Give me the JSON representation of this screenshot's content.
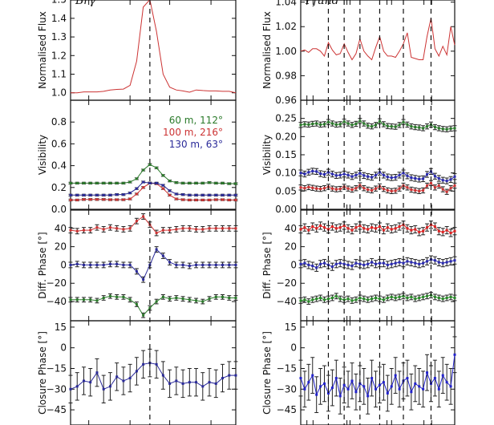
{
  "chart_data": [
    {
      "column": "left",
      "title": "Brγ",
      "type": "line",
      "ylabel": "Normalised Flux",
      "ylim": [
        0.96,
        1.52
      ],
      "xlim": [
        0,
        25
      ],
      "yticks": [
        "1.0",
        "1.1",
        "1.2",
        "1.3",
        "1.4",
        "1.5"
      ],
      "series": [
        {
          "color": "#cc3333",
          "values": [
            1.0,
            1.0,
            1.005,
            1.005,
            1.005,
            1.008,
            1.015,
            1.018,
            1.02,
            1.04,
            1.17,
            1.46,
            1.5,
            1.33,
            1.1,
            1.03,
            1.015,
            1.01,
            1.003,
            1.015,
            1.012,
            1.01,
            1.01,
            1.008,
            1.008,
            1.0
          ]
        }
      ]
    },
    {
      "column": "left",
      "type": "line",
      "ylabel": "Visibility",
      "ylim": [
        0,
        1.0
      ],
      "xlim": [
        0,
        25
      ],
      "yticks": [
        "0.0",
        "0.2",
        "0.4",
        "0.6",
        "0.8"
      ],
      "legend": "top-right",
      "series": [
        {
          "name": "60 m, 112°",
          "color": "#2a7a2a",
          "err": 0.008,
          "values": [
            0.24,
            0.24,
            0.24,
            0.24,
            0.24,
            0.24,
            0.24,
            0.24,
            0.24,
            0.25,
            0.28,
            0.36,
            0.41,
            0.38,
            0.31,
            0.26,
            0.245,
            0.24,
            0.24,
            0.24,
            0.24,
            0.245,
            0.24,
            0.24,
            0.235,
            0.235
          ]
        },
        {
          "name": "100 m, 216°",
          "color": "#cc3333",
          "err": 0.008,
          "values": [
            0.085,
            0.085,
            0.09,
            0.09,
            0.09,
            0.09,
            0.088,
            0.088,
            0.088,
            0.095,
            0.14,
            0.2,
            0.24,
            0.235,
            0.19,
            0.13,
            0.095,
            0.088,
            0.085,
            0.085,
            0.085,
            0.085,
            0.088,
            0.088,
            0.085,
            0.085
          ]
        },
        {
          "name": "130 m, 63°",
          "color": "#2a2a99",
          "err": 0.008,
          "values": [
            0.13,
            0.13,
            0.13,
            0.13,
            0.13,
            0.13,
            0.13,
            0.135,
            0.135,
            0.15,
            0.19,
            0.25,
            0.24,
            0.24,
            0.22,
            0.17,
            0.14,
            0.135,
            0.13,
            0.13,
            0.13,
            0.13,
            0.13,
            0.13,
            0.13,
            0.13
          ]
        }
      ]
    },
    {
      "column": "left",
      "type": "line",
      "ylabel": "Diff. Phase [°]",
      "ylim": [
        -61,
        60
      ],
      "xlim": [
        0,
        25
      ],
      "yticks": [
        "−40",
        "−20",
        "0",
        "20",
        "40"
      ],
      "series": [
        {
          "color": "#cc3333",
          "err": 3,
          "values": [
            38,
            37,
            38,
            38,
            41,
            39,
            41,
            40,
            39,
            40,
            48,
            53,
            44,
            35,
            38,
            38,
            39,
            40,
            40,
            39,
            39,
            40,
            40,
            40,
            40,
            40
          ]
        },
        {
          "color": "#2a2a99",
          "err": 3,
          "values": [
            0,
            1,
            0,
            0,
            0,
            0,
            1,
            1,
            0,
            0,
            -7,
            -16,
            0,
            17,
            10,
            3,
            0,
            0,
            -1,
            0,
            0,
            0,
            0,
            0,
            0,
            0
          ]
        },
        {
          "color": "#2a7a2a",
          "err": 2.5,
          "values": [
            -38,
            -38,
            -38,
            -38,
            -39,
            -36,
            -34,
            -35,
            -35,
            -38,
            -43,
            -55,
            -47,
            -40,
            -35,
            -37,
            -36,
            -37,
            -38,
            -39,
            -40,
            -37,
            -35,
            -35,
            -36,
            -36
          ]
        }
      ]
    },
    {
      "column": "left",
      "type": "line",
      "ylabel": "Closure Phase [°]",
      "ylim": [
        -56,
        19.6
      ],
      "xlim": [
        0,
        25
      ],
      "yticks": [
        "−45",
        "−30",
        "−15",
        "0",
        "15"
      ],
      "series": [
        {
          "color": "#2a2a99",
          "err": 10,
          "values": [
            -30,
            -28,
            -24,
            -25,
            -18,
            -30,
            -28,
            -21,
            -24,
            -22,
            -17,
            -12,
            -11,
            -12,
            -20,
            -26,
            -24,
            -26,
            -25,
            -25,
            -28,
            -25,
            -26,
            -22,
            -20,
            -20
          ]
        }
      ]
    },
    {
      "column": "right",
      "title": "Pfund",
      "type": "line",
      "ylabel": "Normalised Flux",
      "ylim": [
        0.96,
        1.045
      ],
      "xlim": [
        0,
        39
      ],
      "yticks": [
        "0.96",
        "0.98",
        "1.00",
        "1.02",
        "1.04"
      ],
      "series": [
        {
          "color": "#cc3333",
          "values": [
            1.0,
            1.001,
            0.999,
            1.002,
            1.002,
            1.0,
            0.996,
            1.007,
            1.001,
            0.997,
            0.998,
            1.006,
            0.999,
            0.993,
            0.998,
            1.01,
            1.0,
            0.996,
            0.993,
            1.003,
            1.012,
            1.0,
            0.996,
            0.996,
            0.995,
            1.0,
            1.006,
            1.015,
            0.995,
            0.994,
            0.993,
            0.993,
            1.012,
            1.027,
            1.002,
            0.996,
            1.004,
            0.997,
            1.02,
            1.005
          ]
        }
      ]
    },
    {
      "column": "right",
      "type": "line",
      "ylabel": "Visibility",
      "ylim": [
        0,
        0.3
      ],
      "xlim": [
        0,
        39
      ],
      "yticks": [
        "0.00",
        "0.05",
        "0.10",
        "0.15",
        "0.20",
        "0.25"
      ],
      "series": [
        {
          "color": "#2a7a2a",
          "err": 0.007,
          "values": [
            0.232,
            0.234,
            0.233,
            0.235,
            0.236,
            0.233,
            0.234,
            0.24,
            0.236,
            0.233,
            0.234,
            0.241,
            0.236,
            0.232,
            0.235,
            0.243,
            0.236,
            0.23,
            0.228,
            0.232,
            0.242,
            0.234,
            0.229,
            0.228,
            0.227,
            0.232,
            0.24,
            0.233,
            0.228,
            0.226,
            0.225,
            0.223,
            0.228,
            0.233,
            0.226,
            0.223,
            0.221,
            0.22,
            0.222,
            0.223
          ]
        },
        {
          "color": "#2a2ab0",
          "err": 0.008,
          "values": [
            0.1,
            0.097,
            0.102,
            0.105,
            0.104,
            0.098,
            0.096,
            0.102,
            0.097,
            0.093,
            0.094,
            0.097,
            0.094,
            0.09,
            0.094,
            0.099,
            0.093,
            0.09,
            0.088,
            0.094,
            0.102,
            0.094,
            0.089,
            0.087,
            0.088,
            0.094,
            0.1,
            0.092,
            0.087,
            0.085,
            0.083,
            0.084,
            0.096,
            0.104,
            0.091,
            0.085,
            0.08,
            0.078,
            0.082,
            0.09
          ]
        },
        {
          "color": "#cc3333",
          "err": 0.007,
          "values": [
            0.06,
            0.058,
            0.061,
            0.059,
            0.057,
            0.056,
            0.058,
            0.062,
            0.057,
            0.055,
            0.056,
            0.062,
            0.057,
            0.054,
            0.058,
            0.066,
            0.058,
            0.054,
            0.052,
            0.057,
            0.063,
            0.056,
            0.052,
            0.05,
            0.051,
            0.057,
            0.065,
            0.06,
            0.054,
            0.052,
            0.05,
            0.052,
            0.065,
            0.072,
            0.06,
            0.065,
            0.055,
            0.048,
            0.058,
            0.065
          ]
        }
      ]
    },
    {
      "column": "right",
      "type": "line",
      "ylabel": "Diff. Phase [°]",
      "ylim": [
        -61,
        60
      ],
      "xlim": [
        0,
        39
      ],
      "yticks": [
        "−40",
        "−20",
        "0",
        "20",
        "40"
      ],
      "series": [
        {
          "color": "#dd2222",
          "err": 4,
          "values": [
            39,
            41,
            38,
            42,
            40,
            43,
            41,
            39,
            42,
            40,
            41,
            43,
            40,
            38,
            41,
            43,
            40,
            39,
            41,
            40,
            42,
            38,
            41,
            39,
            40,
            42,
            44,
            40,
            38,
            39,
            36,
            37,
            41,
            44,
            42,
            37,
            36,
            38,
            35,
            37
          ]
        },
        {
          "color": "#2a2ab0",
          "err": 4,
          "values": [
            1,
            2,
            0,
            -1,
            -3,
            1,
            2,
            0,
            -2,
            1,
            2,
            1,
            0,
            -1,
            2,
            1,
            0,
            1,
            3,
            1,
            2,
            2,
            0,
            1,
            2,
            3,
            2,
            4,
            3,
            2,
            1,
            2,
            4,
            6,
            5,
            3,
            2,
            3,
            4,
            5
          ]
        },
        {
          "color": "#2a8a2a",
          "err": 3,
          "values": [
            -39,
            -38,
            -40,
            -38,
            -37,
            -36,
            -38,
            -37,
            -36,
            -34,
            -37,
            -38,
            -37,
            -39,
            -38,
            -36,
            -37,
            -38,
            -37,
            -36,
            -37,
            -38,
            -36,
            -35,
            -36,
            -35,
            -34,
            -36,
            -35,
            -37,
            -36,
            -35,
            -34,
            -33,
            -35,
            -36,
            -37,
            -36,
            -35,
            -36
          ]
        }
      ]
    },
    {
      "column": "right",
      "type": "line",
      "ylabel": "Closure Phase [°]",
      "ylim": [
        -56,
        19.6
      ],
      "xlim": [
        0,
        39
      ],
      "yticks": [
        "−45",
        "−30",
        "−15",
        "0",
        "15"
      ],
      "series": [
        {
          "color": "#2222cc",
          "err": 13,
          "values": [
            -22,
            -30,
            -25,
            -20,
            -34,
            -28,
            -26,
            -33,
            -29,
            -22,
            -35,
            -27,
            -30,
            -24,
            -32,
            -26,
            -28,
            -35,
            -22,
            -30,
            -27,
            -25,
            -33,
            -28,
            -20,
            -30,
            -24,
            -22,
            -32,
            -26,
            -28,
            -30,
            -18,
            -26,
            -22,
            -30,
            -20,
            -25,
            -28,
            -5
          ]
        }
      ]
    }
  ],
  "vlines": {
    "left": [
      12
    ],
    "right": [
      7,
      11,
      15,
      20,
      26,
      33
    ]
  }
}
